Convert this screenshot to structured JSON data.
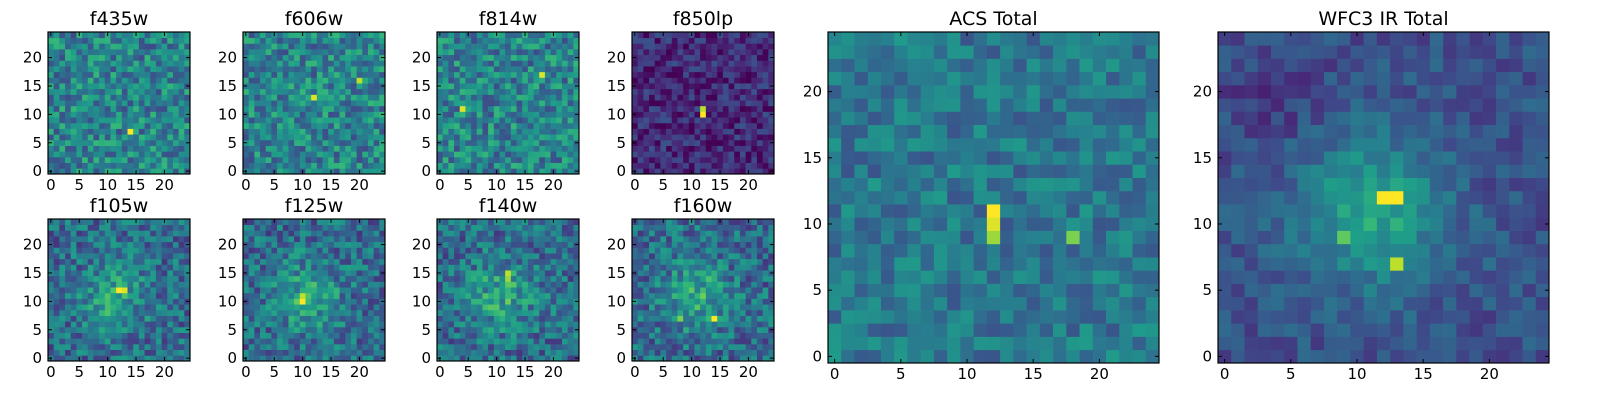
{
  "chart_data": [
    {
      "type": "heatmap",
      "title": "f435w",
      "x_ticks": [
        "0",
        "5",
        "10",
        "15",
        "20"
      ],
      "y_ticks": [
        "0",
        "5",
        "10",
        "15",
        "20"
      ],
      "xlim": [
        -0.5,
        24.5
      ],
      "ylim": [
        -0.5,
        24.5
      ],
      "grid": false,
      "colormap": "viridis",
      "pattern": "noise",
      "hotspots": [
        {
          "x": 14,
          "y": 7,
          "value": 1.0
        }
      ]
    },
    {
      "type": "heatmap",
      "title": "f606w",
      "x_ticks": [
        "0",
        "5",
        "10",
        "15",
        "20"
      ],
      "y_ticks": [
        "0",
        "5",
        "10",
        "15",
        "20"
      ],
      "xlim": [
        -0.5,
        24.5
      ],
      "ylim": [
        -0.5,
        24.5
      ],
      "grid": false,
      "colormap": "viridis",
      "pattern": "noise",
      "hotspots": [
        {
          "x": 12,
          "y": 13,
          "value": 0.95
        },
        {
          "x": 20,
          "y": 16,
          "value": 0.9
        }
      ]
    },
    {
      "type": "heatmap",
      "title": "f814w",
      "x_ticks": [
        "0",
        "5",
        "10",
        "15",
        "20"
      ],
      "y_ticks": [
        "0",
        "5",
        "10",
        "15",
        "20"
      ],
      "xlim": [
        -0.5,
        24.5
      ],
      "ylim": [
        -0.5,
        24.5
      ],
      "grid": false,
      "colormap": "viridis",
      "pattern": "noise",
      "hotspots": [
        {
          "x": 4,
          "y": 11,
          "value": 0.95
        },
        {
          "x": 18,
          "y": 17,
          "value": 0.95
        }
      ]
    },
    {
      "type": "heatmap",
      "title": "f850lp",
      "x_ticks": [
        "0",
        "5",
        "10",
        "15",
        "20"
      ],
      "y_ticks": [
        "0",
        "5",
        "10",
        "15",
        "20"
      ],
      "xlim": [
        -0.5,
        24.5
      ],
      "ylim": [
        -0.5,
        24.5
      ],
      "grid": false,
      "colormap": "viridis",
      "pattern": "faint",
      "hotspots": [
        {
          "x": 12,
          "y": 10,
          "value": 1.0
        },
        {
          "x": 12,
          "y": 11,
          "value": 0.9
        }
      ]
    },
    {
      "type": "heatmap",
      "title": "f105w",
      "x_ticks": [
        "0",
        "5",
        "10",
        "15",
        "20"
      ],
      "y_ticks": [
        "0",
        "5",
        "10",
        "15",
        "20"
      ],
      "xlim": [
        -0.5,
        24.5
      ],
      "ylim": [
        -0.5,
        24.5
      ],
      "grid": false,
      "colormap": "viridis",
      "pattern": "source",
      "hotspots": [
        {
          "x": 12,
          "y": 12,
          "value": 1.0
        },
        {
          "x": 13,
          "y": 12,
          "value": 0.95
        }
      ]
    },
    {
      "type": "heatmap",
      "title": "f125w",
      "x_ticks": [
        "0",
        "5",
        "10",
        "15",
        "20"
      ],
      "y_ticks": [
        "0",
        "5",
        "10",
        "15",
        "20"
      ],
      "xlim": [
        -0.5,
        24.5
      ],
      "ylim": [
        -0.5,
        24.5
      ],
      "grid": false,
      "colormap": "viridis",
      "pattern": "source",
      "hotspots": [
        {
          "x": 10,
          "y": 10,
          "value": 1.0
        },
        {
          "x": 10,
          "y": 11,
          "value": 0.9
        }
      ]
    },
    {
      "type": "heatmap",
      "title": "f140w",
      "x_ticks": [
        "0",
        "5",
        "10",
        "15",
        "20"
      ],
      "y_ticks": [
        "0",
        "5",
        "10",
        "15",
        "20"
      ],
      "xlim": [
        -0.5,
        24.5
      ],
      "ylim": [
        -0.5,
        24.5
      ],
      "grid": false,
      "colormap": "viridis",
      "pattern": "source",
      "hotspots": [
        {
          "x": 12,
          "y": 15,
          "value": 0.9
        },
        {
          "x": 12,
          "y": 14,
          "value": 0.85
        }
      ]
    },
    {
      "type": "heatmap",
      "title": "f160w",
      "x_ticks": [
        "0",
        "5",
        "10",
        "15",
        "20"
      ],
      "y_ticks": [
        "0",
        "5",
        "10",
        "15",
        "20"
      ],
      "xlim": [
        -0.5,
        24.5
      ],
      "ylim": [
        -0.5,
        24.5
      ],
      "grid": false,
      "colormap": "viridis",
      "pattern": "source",
      "hotspots": [
        {
          "x": 14,
          "y": 7,
          "value": 1.0
        },
        {
          "x": 8,
          "y": 7,
          "value": 0.8
        }
      ]
    },
    {
      "type": "heatmap",
      "title": "ACS Total",
      "x_ticks": [
        "0",
        "5",
        "10",
        "15",
        "20"
      ],
      "y_ticks": [
        "0",
        "5",
        "10",
        "15",
        "20"
      ],
      "xlim": [
        -0.5,
        24.5
      ],
      "ylim": [
        -0.5,
        24.5
      ],
      "grid": false,
      "colormap": "viridis",
      "pattern": "acs",
      "hotspots": [
        {
          "x": 12,
          "y": 11,
          "value": 1.0
        },
        {
          "x": 12,
          "y": 10,
          "value": 0.95
        },
        {
          "x": 12,
          "y": 9,
          "value": 0.85
        },
        {
          "x": 18,
          "y": 9,
          "value": 0.8
        }
      ]
    },
    {
      "type": "heatmap",
      "title": "WFC3 IR Total",
      "x_ticks": [
        "0",
        "5",
        "10",
        "15",
        "20"
      ],
      "y_ticks": [
        "0",
        "5",
        "10",
        "15",
        "20"
      ],
      "xlim": [
        -0.5,
        24.5
      ],
      "ylim": [
        -0.5,
        24.5
      ],
      "grid": false,
      "colormap": "viridis",
      "pattern": "wfc3",
      "hotspots": [
        {
          "x": 12,
          "y": 12,
          "value": 1.0
        },
        {
          "x": 13,
          "y": 12,
          "value": 1.0
        },
        {
          "x": 13,
          "y": 7,
          "value": 0.9
        },
        {
          "x": 9,
          "y": 9,
          "value": 0.75
        }
      ]
    }
  ]
}
